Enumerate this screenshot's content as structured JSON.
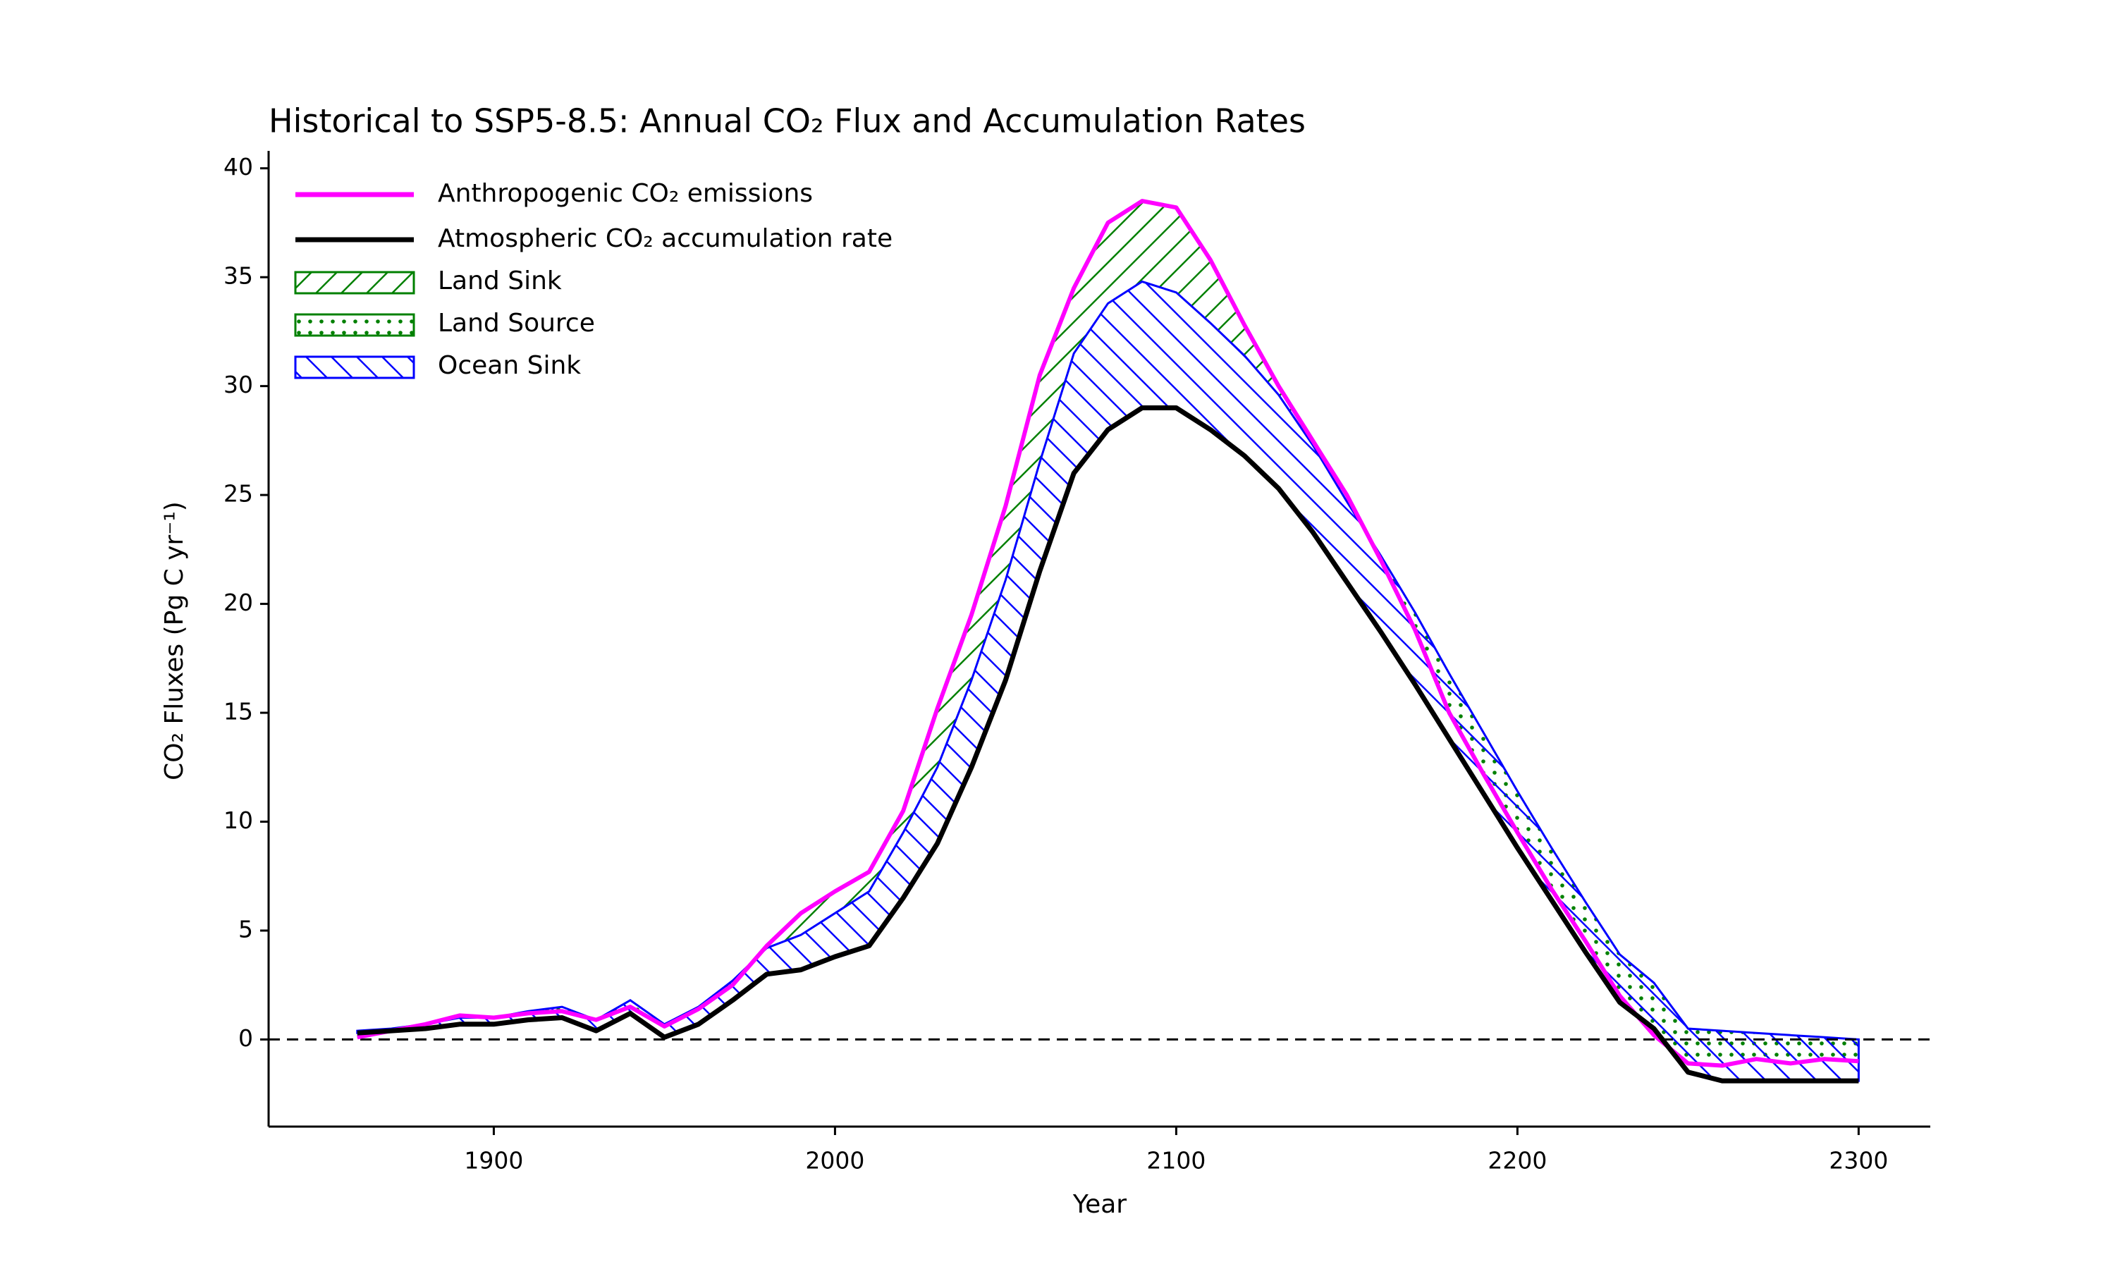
{
  "chart_data": {
    "type": "flux_line",
    "title": "Historical to SSP5-8.5: Annual CO₂ Flux and Accumulation Rates",
    "x_label": "Year",
    "y_label": "CO₂ Fluxes (Pg C yr⁻¹)",
    "x": [
      1860,
      1870,
      1880,
      1890,
      1900,
      1910,
      1920,
      1930,
      1940,
      1950,
      1960,
      1970,
      1980,
      1990,
      2000,
      2010,
      2020,
      2030,
      2040,
      2050,
      2060,
      2070,
      2080,
      2090,
      2100,
      2110,
      2120,
      2130,
      2140,
      2150,
      2160,
      2170,
      2180,
      2190,
      2200,
      2210,
      2220,
      2230,
      2240,
      2250,
      2260,
      2270,
      2280,
      2290,
      2300
    ],
    "series": [
      {
        "name": "Anthropogenic CO₂ emissions",
        "color": "#ff00ff",
        "values": [
          0.1,
          0.4,
          0.7,
          1.1,
          1.0,
          1.2,
          1.3,
          0.9,
          1.5,
          0.6,
          1.4,
          2.5,
          4.3,
          5.8,
          6.8,
          7.7,
          10.5,
          15.2,
          19.5,
          24.5,
          30.5,
          34.5,
          37.5,
          38.5,
          38.2,
          35.8,
          32.8,
          30.0,
          27.5,
          25.0,
          22.0,
          18.8,
          15.0,
          12.2,
          9.5,
          6.9,
          4.5,
          2.0,
          0.2,
          -1.1,
          -1.2,
          -0.9,
          -1.1,
          -0.9,
          -1.0
        ]
      },
      {
        "name": "Atmospheric CO₂ accumulation rate",
        "color": "#000000",
        "values": [
          0.3,
          0.4,
          0.5,
          0.7,
          0.7,
          0.9,
          1.0,
          0.4,
          1.2,
          0.1,
          0.7,
          1.8,
          3.0,
          3.2,
          3.8,
          4.3,
          6.5,
          9.0,
          12.5,
          16.5,
          21.5,
          26.0,
          28.0,
          29.0,
          29.0,
          28.0,
          26.8,
          25.3,
          23.3,
          21.0,
          18.7,
          16.3,
          13.8,
          11.3,
          8.8,
          6.4,
          4.0,
          1.7,
          0.5,
          -1.5,
          -1.9,
          -1.9,
          -1.9,
          -1.9,
          -1.9
        ]
      }
    ],
    "areas": [
      {
        "name": "Land Sink",
        "color": "#008000",
        "hatch": "/"
      },
      {
        "name": "Land Source",
        "color": "#008000",
        "hatch": "."
      },
      {
        "name": "Ocean Sink",
        "color": "#0000ff",
        "hatch": "\\",
        "values": [
          0.1,
          0.1,
          0.2,
          0.3,
          0.3,
          0.4,
          0.5,
          0.5,
          0.6,
          0.6,
          0.8,
          0.9,
          1.2,
          1.6,
          2.0,
          2.5,
          3.0,
          3.5,
          4.0,
          4.6,
          5.0,
          5.5,
          5.8,
          5.8,
          5.3,
          4.9,
          4.6,
          4.3,
          4.0,
          3.7,
          3.5,
          3.3,
          3.0,
          2.8,
          2.6,
          2.4,
          2.3,
          2.2,
          2.1,
          2.0,
          2.3,
          2.2,
          2.1,
          2.0,
          1.9
        ]
      }
    ],
    "xlim": [
      1834,
      2321
    ],
    "ylim": [
      -4,
      40.8
    ],
    "xticks": [
      1900,
      2000,
      2100,
      2200,
      2300
    ],
    "yticks": [
      0,
      5,
      10,
      15,
      20,
      25,
      30,
      35,
      40
    ],
    "reference_line": 0,
    "legend": "upper left",
    "grid": false
  }
}
